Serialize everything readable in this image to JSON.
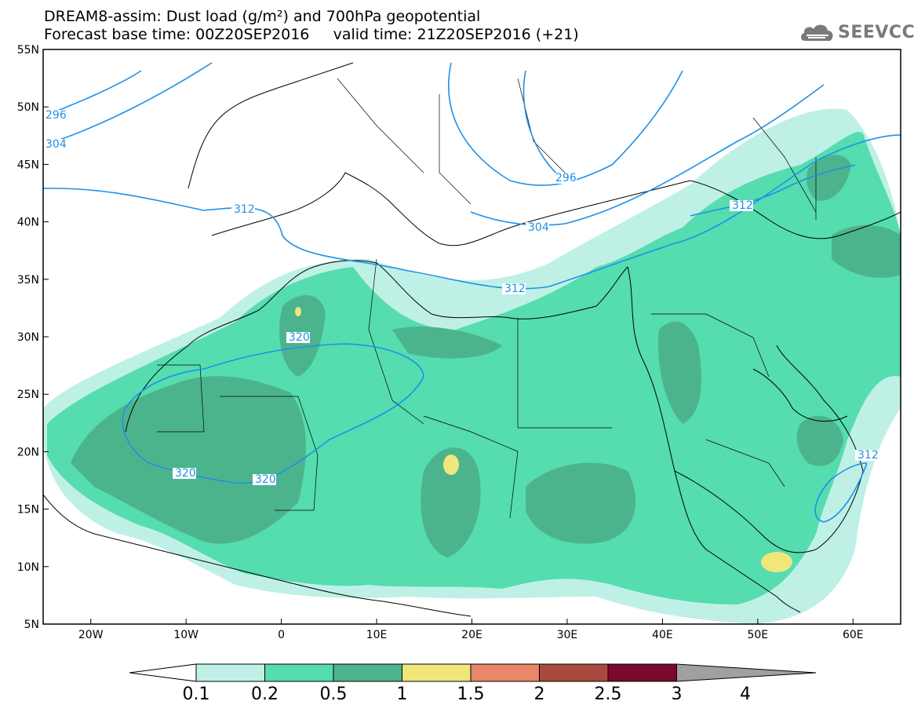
{
  "header": {
    "line1": "DREAM8-assim: Dust load (g/m²) and 700hPa geopotential",
    "line2": "Forecast base time: 00Z20SEP2016     valid time: 21Z20SEP2016 (+21)"
  },
  "logo": {
    "text": "SEEVCCC",
    "icon": "cloud-icon"
  },
  "map": {
    "lon_range": [
      -25,
      65
    ],
    "lat_range": [
      5,
      55
    ],
    "lon_ticks": [
      {
        "lon": -20,
        "label": "20W"
      },
      {
        "lon": -10,
        "label": "10W"
      },
      {
        "lon": 0,
        "label": "0"
      },
      {
        "lon": 10,
        "label": "10E"
      },
      {
        "lon": 20,
        "label": "20E"
      },
      {
        "lon": 30,
        "label": "30E"
      },
      {
        "lon": 40,
        "label": "40E"
      },
      {
        "lon": 50,
        "label": "50E"
      },
      {
        "lon": 60,
        "label": "60E"
      }
    ],
    "lat_ticks": [
      {
        "lat": 55,
        "label": "55N"
      },
      {
        "lat": 50,
        "label": "50N"
      },
      {
        "lat": 45,
        "label": "45N"
      },
      {
        "lat": 40,
        "label": "40N"
      },
      {
        "lat": 35,
        "label": "35N"
      },
      {
        "lat": 30,
        "label": "30N"
      },
      {
        "lat": 25,
        "label": "25N"
      },
      {
        "lat": 20,
        "label": "20N"
      },
      {
        "lat": 15,
        "label": "15N"
      },
      {
        "lat": 10,
        "label": "10N"
      },
      {
        "lat": 5,
        "label": "5N"
      }
    ],
    "contour_labels": [
      "296",
      "304",
      "312",
      "296",
      "304",
      "312",
      "312",
      "320",
      "320",
      "320",
      "312"
    ],
    "colors": {
      "coast": "#000000",
      "contour": "#1e90e8",
      "dust_01": "#bff0e6",
      "dust_02": "#55dcaf",
      "dust_05": "#4cb48c",
      "dust_1": "#f0e67a",
      "dust_15": "#e8876a",
      "dust_2": "#aa4a3e",
      "dust_25": "#7a0a2c",
      "dust_3": "#8c6496",
      "dust_4": "#a0a0a0"
    }
  },
  "colorbar": {
    "labels": [
      "0.1",
      "0.2",
      "0.5",
      "1",
      "1.5",
      "2",
      "2.5",
      "3",
      "4"
    ],
    "colors": [
      "#bff0e6",
      "#55dcaf",
      "#4cb48c",
      "#f0e67a",
      "#e8876a",
      "#aa4a3e",
      "#7a0a2c",
      "#8c6496",
      "#a0a0a0"
    ]
  }
}
